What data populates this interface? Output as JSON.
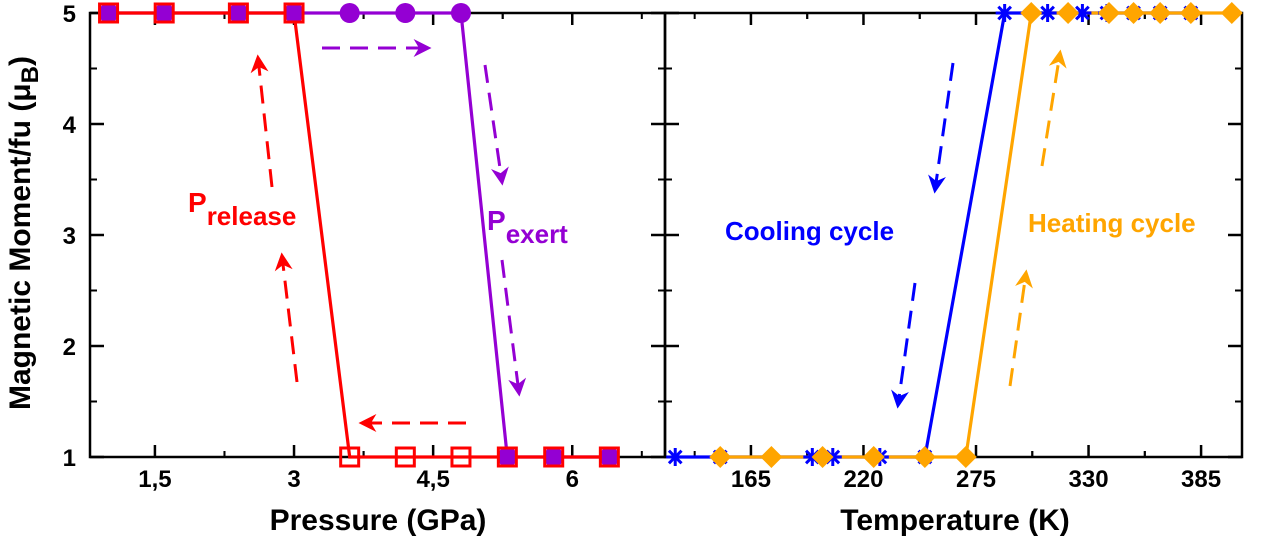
{
  "colors": {
    "release": "#ff0000",
    "exert": "#9400d3",
    "cooling": "#0000ff",
    "heating": "#ffa500"
  },
  "shared_ylabel": {
    "main": "Magnetic Moment/fu (",
    "mu": "μ",
    "sub": "B",
    "close": ")"
  },
  "chart_data": [
    {
      "type": "line",
      "xlabel": "Pressure (GPa)",
      "ylabel": "Magnetic Moment/fu (μB)",
      "xlim": [
        0.8,
        7.0
      ],
      "ylim": [
        1,
        5
      ],
      "xticks": [
        1.5,
        3,
        4.5,
        6
      ],
      "xtick_labels": [
        "1,5",
        "3",
        "4,5",
        "6"
      ],
      "yticks": [
        1,
        2,
        3,
        4,
        5
      ],
      "ytick_labels": [
        "1",
        "2",
        "3",
        "4",
        "5"
      ],
      "annotations": {
        "release": {
          "main": "P",
          "sub": "release"
        },
        "exert": {
          "main": "P",
          "sub": "exert"
        }
      },
      "series": [
        {
          "key": "exert",
          "marker": "circle",
          "x": [
            1.0,
            1.6,
            2.4,
            3.0,
            3.6,
            4.2,
            4.8,
            5.3,
            5.8,
            6.4
          ],
          "y": [
            5,
            5,
            5,
            5,
            5,
            5,
            5,
            1,
            1,
            1
          ]
        },
        {
          "key": "release",
          "marker": "square",
          "x": [
            1.0,
            1.6,
            2.4,
            3.0,
            3.6,
            4.2,
            4.8,
            5.3,
            5.8,
            6.4
          ],
          "y": [
            5,
            5,
            5,
            5,
            1,
            1,
            1,
            1,
            1,
            1
          ]
        }
      ]
    },
    {
      "type": "line",
      "xlabel": "Temperature (K)",
      "ylabel": "",
      "xlim": [
        123,
        405
      ],
      "ylim": [
        1,
        5
      ],
      "xticks": [
        165,
        220,
        275,
        330,
        385
      ],
      "xtick_labels": [
        "165",
        "220",
        "275",
        "330",
        "385"
      ],
      "yticks": [
        1,
        2,
        3,
        4,
        5
      ],
      "annotations": {
        "cooling": {
          "label": "Cooling cycle"
        },
        "heating": {
          "label": "Heating cycle"
        }
      },
      "series": [
        {
          "key": "cooling",
          "marker": "star",
          "x": [
            128,
            150,
            195,
            205,
            228,
            250,
            289,
            310,
            327,
            339,
            352,
            365,
            380
          ],
          "y": [
            1,
            1,
            1,
            1,
            1,
            1,
            5,
            5,
            5,
            5,
            5,
            5,
            5
          ]
        },
        {
          "key": "heating",
          "marker": "diamond",
          "x": [
            150,
            175,
            200,
            225,
            250,
            270,
            302,
            320,
            340,
            352,
            365,
            380,
            400
          ],
          "y": [
            1,
            1,
            1,
            1,
            1,
            1,
            5,
            5,
            5,
            5,
            5,
            5,
            5
          ]
        }
      ]
    }
  ]
}
